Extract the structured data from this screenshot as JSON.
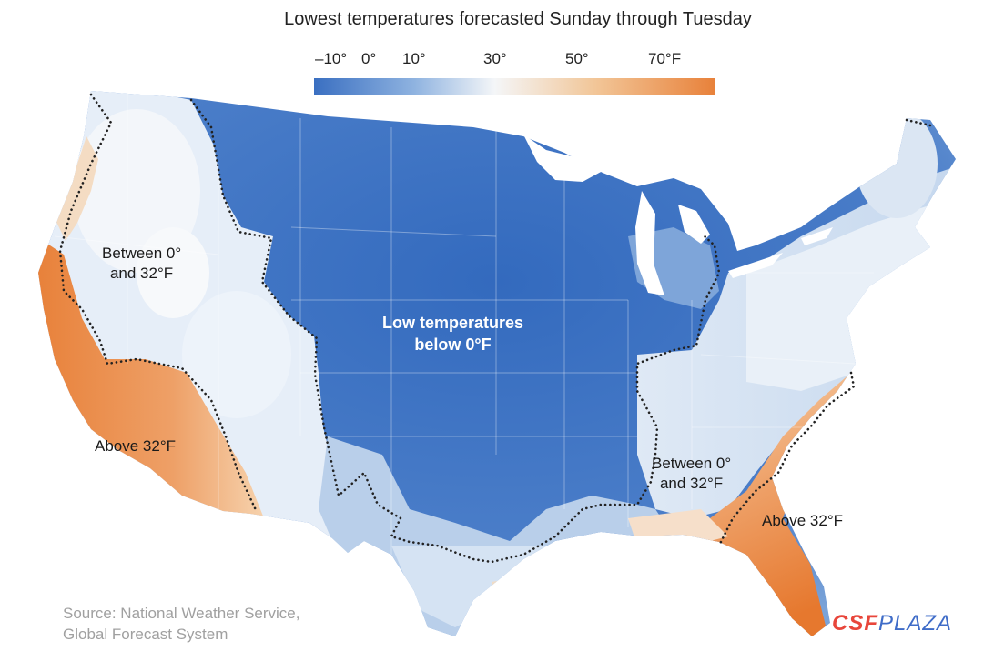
{
  "title": "Lowest temperatures forecasted Sunday through Tuesday",
  "legend": {
    "ticks": [
      {
        "label": "–10°",
        "value": -10
      },
      {
        "label": "0°",
        "value": 0
      },
      {
        "label": "10°",
        "value": 10
      },
      {
        "label": "30°",
        "value": 30
      },
      {
        "label": "50°",
        "value": 50
      },
      {
        "label": "70°F",
        "value": 70
      }
    ],
    "colors": {
      "cold": "#3a6fc1",
      "cool": "#8fb3e0",
      "neutral": "#f4f6f8",
      "warm": "#f2c698",
      "hot": "#e8813a"
    }
  },
  "labels": {
    "west_between_line1": "Between 0°",
    "west_between_line2": "and 32°F",
    "low_line1": "Low temperatures",
    "low_line2": "below 0°F",
    "west_above": "Above 32°F",
    "east_between_line1": "Between 0°",
    "east_between_line2": "and 32°F",
    "east_above": "Above 32°F"
  },
  "source": {
    "line1": "Source: National Weather Service,",
    "line2": "Global Forecast System"
  },
  "watermark": {
    "part1": "CSF",
    "part2": "PLAZA"
  }
}
